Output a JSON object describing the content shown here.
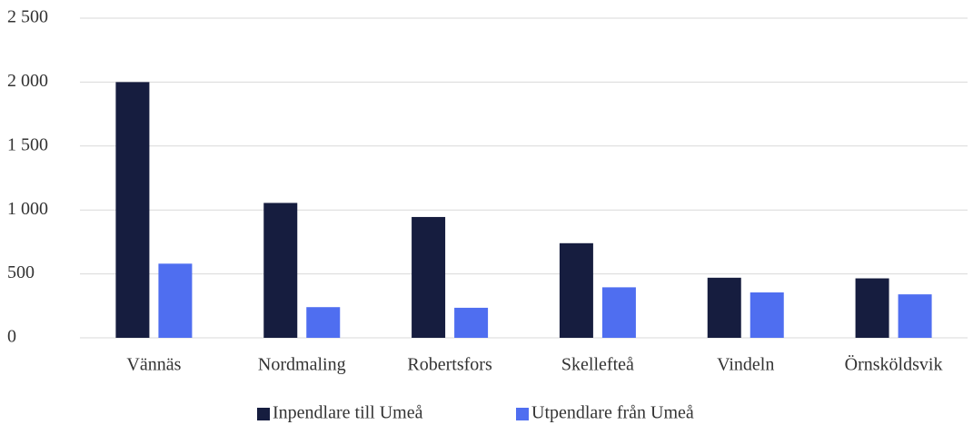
{
  "chart_data": {
    "type": "bar",
    "categories": [
      "Vännäs",
      "Nordmaling",
      "Robertsfors",
      "Skellefteå",
      "Vindeln",
      "Örnsköldsvik"
    ],
    "series": [
      {
        "name": "Inpendlare till Umeå",
        "color": "#161d3f",
        "values": [
          2000,
          1055,
          945,
          740,
          470,
          465
        ]
      },
      {
        "name": "Utpendlare från Umeå",
        "color": "#4f6ef0",
        "values": [
          580,
          240,
          235,
          395,
          355,
          340
        ]
      }
    ],
    "ylim": [
      0,
      2500
    ],
    "yticks": [
      0,
      500,
      {
        "value": 1000,
        "label": "1 000"
      },
      {
        "value": 1500,
        "label": "1 500"
      },
      {
        "value": 2000,
        "label": "2 000"
      },
      {
        "value": 2500,
        "label": "2 500"
      }
    ],
    "grid": true,
    "legend": "bottom"
  }
}
